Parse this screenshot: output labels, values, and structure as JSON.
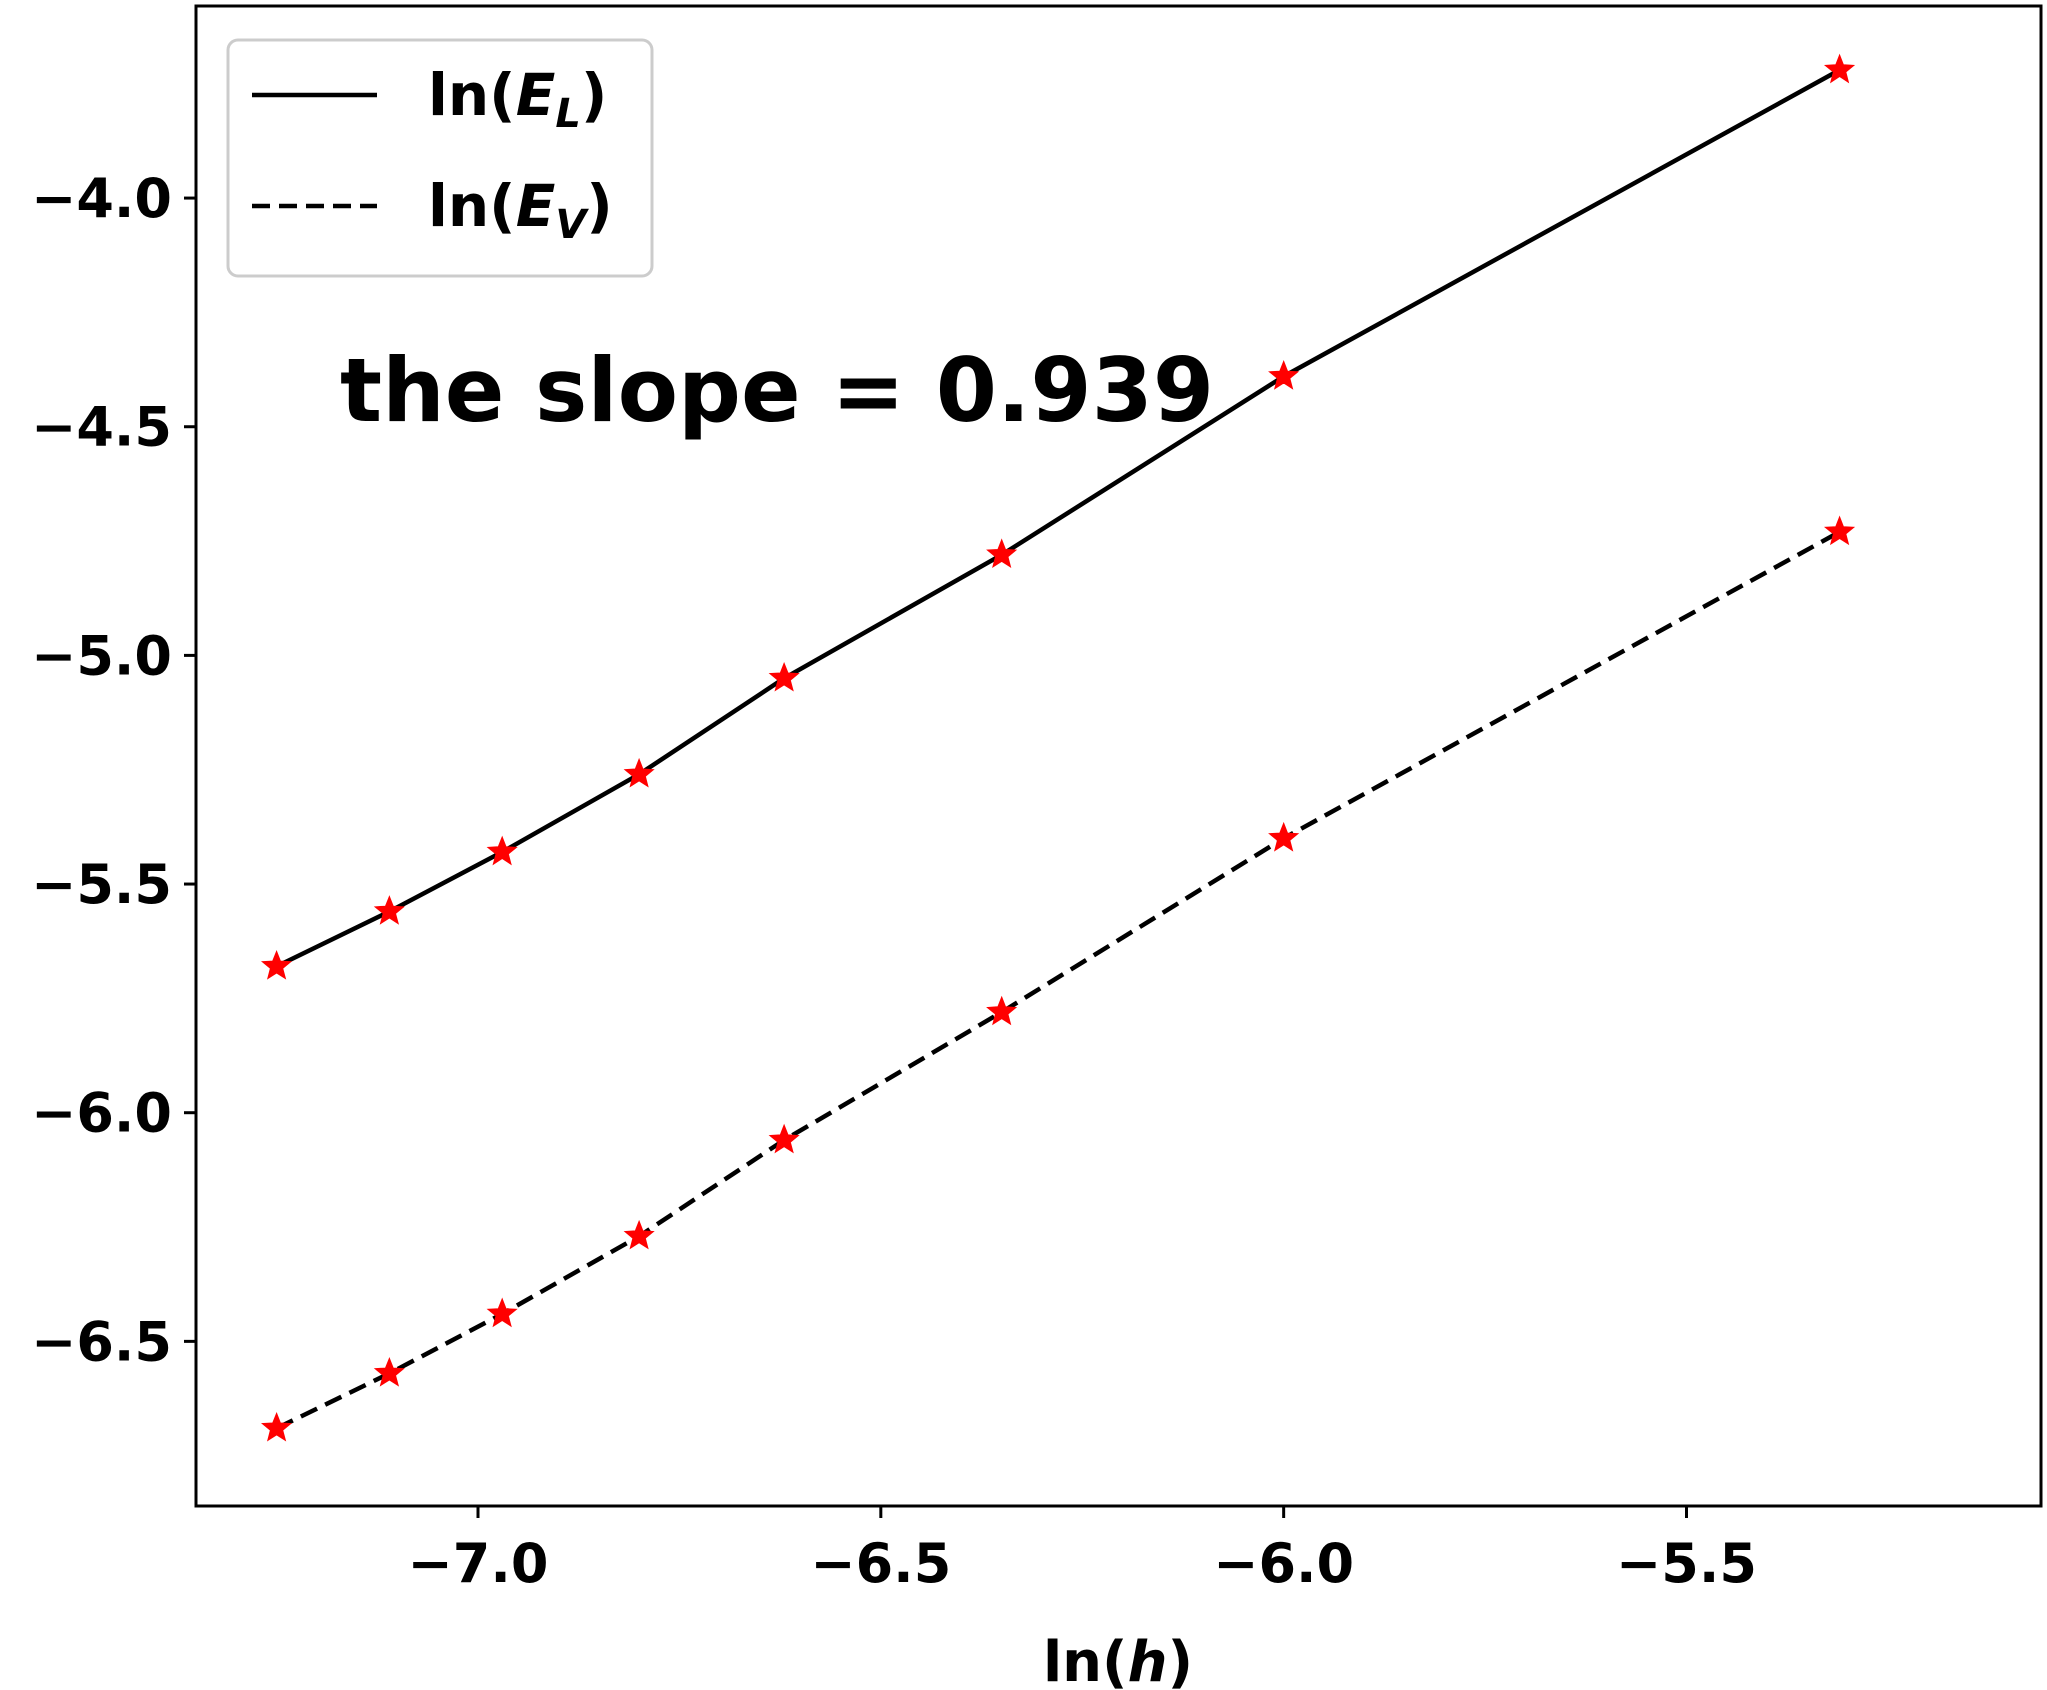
{
  "chart_data": {
    "type": "line",
    "title": "",
    "xlabel": {
      "prefix": "ln(",
      "var": "h",
      "suffix": ")"
    },
    "ylabel": "",
    "xlim": [
      -7.35,
      -5.06
    ],
    "ylim": [
      -6.86,
      -3.58
    ],
    "xticks": [
      -7.0,
      -6.5,
      -6.0,
      -5.5
    ],
    "xtick_labels": [
      "−7.0",
      "−6.5",
      "−6.0",
      "−5.5"
    ],
    "yticks": [
      -4.0,
      -4.5,
      -5.0,
      -5.5,
      -6.0,
      -6.5
    ],
    "ytick_labels": [
      "−4.0",
      "−4.5",
      "−5.0",
      "−5.5",
      "−6.0",
      "−6.5"
    ],
    "grid": false,
    "legend_position": "top-left",
    "marker": "red star",
    "marker_color": "#ff0000",
    "series": [
      {
        "name": {
          "prefix": "ln(",
          "var": "E",
          "sub": "L",
          "suffix": ")"
        },
        "line_style": "solid",
        "color": "#000000",
        "x": [
          -7.25,
          -7.11,
          -6.97,
          -6.8,
          -6.62,
          -6.35,
          -6.0,
          -5.31
        ],
        "y": [
          -5.68,
          -5.56,
          -5.43,
          -5.26,
          -5.05,
          -4.78,
          -4.39,
          -3.72
        ]
      },
      {
        "name": {
          "prefix": "ln(",
          "var": "E",
          "sub": "V",
          "suffix": ")"
        },
        "line_style": "dashed",
        "color": "#000000",
        "x": [
          -7.25,
          -7.11,
          -6.97,
          -6.8,
          -6.62,
          -6.35,
          -6.0,
          -5.31
        ],
        "y": [
          -6.69,
          -6.57,
          -6.44,
          -6.27,
          -6.06,
          -5.78,
          -5.4,
          -4.73
        ]
      }
    ],
    "annotations": [
      {
        "text": "the slope = 0.939"
      }
    ]
  }
}
